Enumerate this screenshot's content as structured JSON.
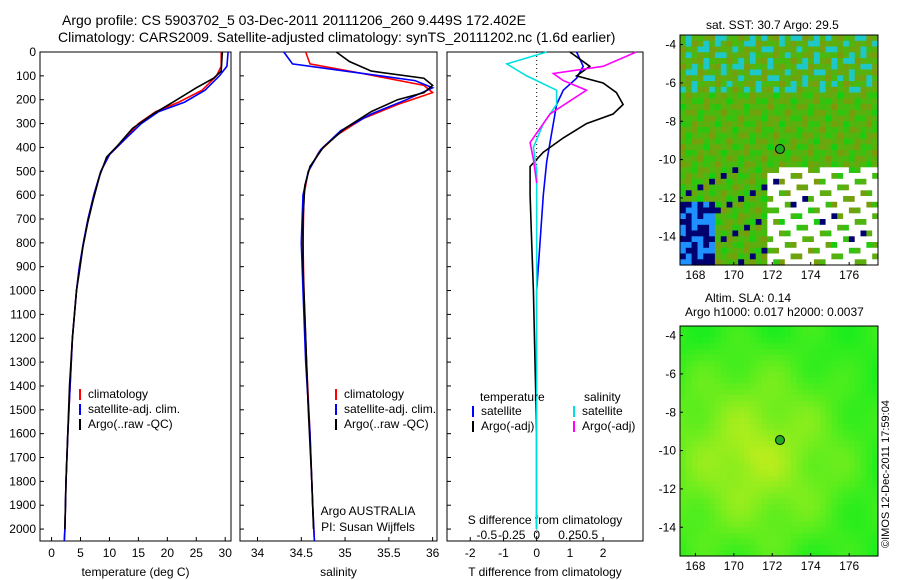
{
  "header": {
    "line1": "Argo profile: CS 5903702_5 03-Dec-2011 20111206_260 9.449S 172.402E",
    "line2": "Climatology: CARS2009. Satellite-adjusted climatology: synTS_20111202.nc (1.6d earlier)"
  },
  "side": {
    "sst_title": "sat. SST: 30.7 Argo: 29.5",
    "sla_title": "Altim. SLA: 0.14",
    "h_title": "Argo h1000: 0.017 h2000: 0.0037",
    "credit": "©IMOS 12-Dec-2011 17:59:04"
  },
  "colors": {
    "climatology": "#ff0000",
    "satellite": "#0000ff",
    "argo": "#000000",
    "salinity_sat": "#00e0e0",
    "salinity_argo": "#ff00ff"
  },
  "chart_data": [
    {
      "type": "line",
      "panel": "temperature",
      "xlabel": "temperature (deg C)",
      "xlim": [
        -2,
        31
      ],
      "ylim": [
        2050,
        0
      ],
      "y_inverted": true,
      "xticks": [
        0,
        5,
        10,
        15,
        20,
        25,
        30
      ],
      "yticks": [
        0,
        100,
        200,
        300,
        400,
        500,
        600,
        700,
        800,
        900,
        1000,
        1100,
        1200,
        1300,
        1400,
        1500,
        1600,
        1700,
        1800,
        1900,
        2000
      ],
      "legend": [
        "climatology",
        "satellite-adj. clim.",
        "Argo(..raw -QC)"
      ],
      "legend_position": "bottom-center",
      "series": [
        {
          "name": "climatology",
          "color": "#ff0000",
          "points": [
            [
              29.3,
              0
            ],
            [
              29.3,
              60
            ],
            [
              28.5,
              100
            ],
            [
              26,
              160
            ],
            [
              22,
              210
            ],
            [
              18,
              250
            ],
            [
              15,
              300
            ],
            [
              12.5,
              370
            ],
            [
              10,
              430
            ],
            [
              8.5,
              500
            ],
            [
              7.3,
              600
            ],
            [
              6.3,
              700
            ],
            [
              5.5,
              800
            ],
            [
              4.8,
              900
            ],
            [
              4.3,
              1000
            ],
            [
              3.6,
              1200
            ],
            [
              3.2,
              1400
            ],
            [
              2.8,
              1600
            ],
            [
              2.5,
              1800
            ],
            [
              2.3,
              2000
            ],
            [
              2.2,
              2050
            ]
          ]
        },
        {
          "name": "satellite-adj. clim.",
          "color": "#0000ff",
          "points": [
            [
              30.5,
              0
            ],
            [
              30.3,
              60
            ],
            [
              29,
              100
            ],
            [
              26.5,
              160
            ],
            [
              23,
              210
            ],
            [
              18.5,
              250
            ],
            [
              15.5,
              300
            ],
            [
              12.5,
              370
            ],
            [
              10,
              430
            ],
            [
              8.5,
              500
            ],
            [
              7.3,
              600
            ],
            [
              6.3,
              700
            ],
            [
              5.5,
              800
            ],
            [
              4.8,
              900
            ],
            [
              4.3,
              1000
            ],
            [
              3.6,
              1200
            ],
            [
              3.2,
              1400
            ],
            [
              2.8,
              1600
            ],
            [
              2.5,
              1800
            ],
            [
              2.3,
              2000
            ],
            [
              2.2,
              2050
            ]
          ]
        },
        {
          "name": "Argo(..raw -QC)",
          "color": "#000000",
          "points": [
            [
              29.5,
              0
            ],
            [
              29.3,
              80
            ],
            [
              28,
              110
            ],
            [
              25,
              150
            ],
            [
              21,
              210
            ],
            [
              17.5,
              260
            ],
            [
              14,
              320
            ],
            [
              11.5,
              390
            ],
            [
              9.5,
              440
            ],
            [
              8.3,
              520
            ],
            [
              7.2,
              620
            ],
            [
              6.2,
              720
            ],
            [
              5.4,
              820
            ],
            [
              4.8,
              920
            ],
            [
              4.3,
              1000
            ],
            [
              3.6,
              1200
            ],
            [
              3.1,
              1400
            ],
            [
              2.8,
              1600
            ],
            [
              2.5,
              1800
            ],
            [
              2.3,
              2000
            ]
          ]
        }
      ]
    },
    {
      "type": "line",
      "panel": "salinity",
      "xlabel": "salinity",
      "xlim": [
        33.8,
        36.05
      ],
      "ylim": [
        2050,
        0
      ],
      "xticks": [
        34,
        34.5,
        35,
        35.5,
        36
      ],
      "legend": [
        "climatology",
        "satellite-adj. clim.",
        "Argo(..raw -QC)"
      ],
      "legend_position": "bottom-right",
      "annotation": [
        "Argo AUSTRALIA",
        "PI: Susan Wijffels"
      ],
      "series": [
        {
          "name": "climatology",
          "color": "#ff0000",
          "points": [
            [
              34.55,
              0
            ],
            [
              34.6,
              50
            ],
            [
              35.2,
              90
            ],
            [
              35.9,
              140
            ],
            [
              36.0,
              170
            ],
            [
              35.6,
              220
            ],
            [
              35.2,
              280
            ],
            [
              34.9,
              350
            ],
            [
              34.7,
              420
            ],
            [
              34.58,
              500
            ],
            [
              34.53,
              600
            ],
            [
              34.52,
              800
            ],
            [
              34.53,
              1000
            ],
            [
              34.56,
              1300
            ],
            [
              34.6,
              1600
            ],
            [
              34.63,
              1900
            ],
            [
              34.65,
              2050
            ]
          ]
        },
        {
          "name": "satellite-adj. clim.",
          "color": "#0000ff",
          "points": [
            [
              34.3,
              0
            ],
            [
              34.4,
              50
            ],
            [
              35.0,
              80
            ],
            [
              35.8,
              120
            ],
            [
              36.0,
              150
            ],
            [
              35.7,
              200
            ],
            [
              35.3,
              260
            ],
            [
              34.95,
              330
            ],
            [
              34.72,
              410
            ],
            [
              34.58,
              500
            ],
            [
              34.52,
              600
            ],
            [
              34.5,
              800
            ],
            [
              34.52,
              1000
            ],
            [
              34.55,
              1300
            ],
            [
              34.6,
              1600
            ],
            [
              34.63,
              1900
            ],
            [
              34.65,
              2050
            ]
          ]
        },
        {
          "name": "Argo(..raw -QC)",
          "color": "#000000",
          "points": [
            [
              34.9,
              0
            ],
            [
              35.05,
              40
            ],
            [
              35.3,
              80
            ],
            [
              35.9,
              110
            ],
            [
              36.0,
              140
            ],
            [
              35.9,
              170
            ],
            [
              35.6,
              200
            ],
            [
              35.3,
              250
            ],
            [
              35.0,
              320
            ],
            [
              34.75,
              400
            ],
            [
              34.6,
              480
            ],
            [
              34.54,
              560
            ],
            [
              34.52,
              700
            ],
            [
              34.52,
              900
            ],
            [
              34.55,
              1200
            ],
            [
              34.58,
              1500
            ],
            [
              34.62,
              1800
            ],
            [
              34.64,
              2000
            ]
          ]
        }
      ]
    },
    {
      "type": "line",
      "panel": "difference",
      "xlabel": "T difference from climatology",
      "xlabel2": "S difference from climatology",
      "xlim": [
        -2.7,
        3.2
      ],
      "ylim": [
        2050,
        0
      ],
      "xticks": [
        -2,
        -1,
        0,
        1,
        2
      ],
      "xticks2": [
        [
          "-0.5",
          -1.5
        ],
        [
          "-0.25",
          -0.75
        ],
        [
          "0",
          0
        ],
        [
          "0.25",
          1.0
        ],
        [
          "0.5",
          1.6
        ]
      ],
      "legend_left": {
        "title": "temperature",
        "items": [
          "satellite",
          "Argo(-adj)"
        ]
      },
      "legend_right": {
        "title": "salinity",
        "items": [
          "satellite",
          "Argo(-adj)"
        ]
      },
      "series": [
        {
          "name": "T satellite",
          "color": "#0000ff",
          "points": [
            [
              1.2,
              0
            ],
            [
              1.4,
              60
            ],
            [
              1.2,
              110
            ],
            [
              0.8,
              160
            ],
            [
              0.6,
              220
            ],
            [
              0.5,
              300
            ],
            [
              0.4,
              380
            ],
            [
              0.3,
              460
            ],
            [
              0.2,
              600
            ],
            [
              0.1,
              800
            ],
            [
              0,
              1000
            ],
            [
              0,
              2000
            ]
          ]
        },
        {
          "name": "T Argo(-adj)",
          "color": "#000000",
          "points": [
            [
              1.0,
              0
            ],
            [
              1.6,
              60
            ],
            [
              1.2,
              100
            ],
            [
              2.0,
              130
            ],
            [
              2.4,
              170
            ],
            [
              2.6,
              220
            ],
            [
              2.3,
              260
            ],
            [
              1.5,
              300
            ],
            [
              0.8,
              360
            ],
            [
              0.2,
              420
            ],
            [
              -0.2,
              480
            ],
            [
              -0.2,
              600
            ],
            [
              -0.15,
              800
            ],
            [
              -0.1,
              1000
            ],
            [
              -0.05,
              1300
            ],
            [
              0,
              1600
            ],
            [
              0,
              2000
            ]
          ]
        },
        {
          "name": "S satellite",
          "color": "#00e0e0",
          "points": [
            [
              0.3,
              0
            ],
            [
              -0.9,
              50
            ],
            [
              -0.3,
              100
            ],
            [
              0.6,
              160
            ],
            [
              0.6,
              220
            ],
            [
              0.2,
              300
            ],
            [
              -0.1,
              400
            ],
            [
              0,
              500
            ],
            [
              0,
              700
            ],
            [
              0,
              1000
            ],
            [
              0,
              1500
            ],
            [
              0,
              2000
            ]
          ]
        },
        {
          "name": "S Argo(-adj)",
          "color": "#ff00ff",
          "points": [
            [
              3.0,
              0
            ],
            [
              2.0,
              60
            ],
            [
              0.5,
              90
            ],
            [
              0.8,
              120
            ],
            [
              1.5,
              160
            ],
            [
              0.4,
              260
            ],
            [
              -0.2,
              380
            ],
            [
              -0.1,
              450
            ],
            [
              0,
              550
            ]
          ]
        }
      ]
    },
    {
      "type": "heatmap",
      "panel": "sst_map",
      "title": "sat. SST: 30.7 Argo: 29.5",
      "xlim": [
        167.2,
        177.5
      ],
      "ylim": [
        -15.5,
        -3.5
      ],
      "xticks": [
        168,
        170,
        172,
        174,
        176
      ],
      "yticks": [
        -4,
        -6,
        -8,
        -10,
        -12,
        -14
      ],
      "marker": {
        "lon": 172.4,
        "lat": -9.45
      }
    },
    {
      "type": "heatmap",
      "panel": "sla_map",
      "title": "Altim. SLA: 0.14",
      "xlim": [
        167.2,
        177.5
      ],
      "ylim": [
        -15.5,
        -3.5
      ],
      "xticks": [
        168,
        170,
        172,
        174,
        176
      ],
      "yticks": [
        -4,
        -6,
        -8,
        -10,
        -12,
        -14
      ],
      "marker": {
        "lon": 172.4,
        "lat": -9.45
      }
    }
  ]
}
